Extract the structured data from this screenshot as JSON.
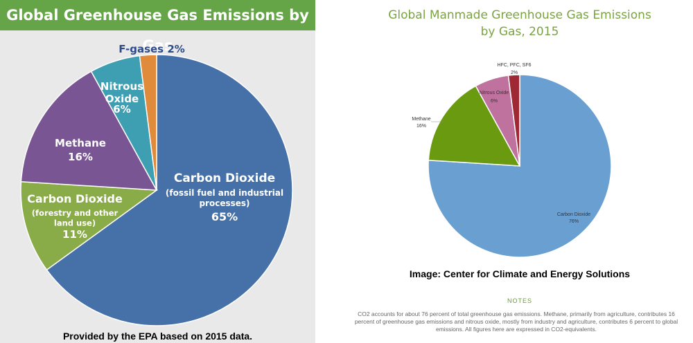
{
  "chart_data": [
    {
      "type": "pie",
      "title": "Global Greenhouse Gas Emissions by Gas",
      "slices": [
        {
          "name_lines": [
            "Carbon Dioxide",
            "(fossil fuel and industrial",
            "processes)"
          ],
          "value": 65,
          "value_label": "65%",
          "color": "#4671a8"
        },
        {
          "name_lines": [
            "Carbon Dioxide",
            "(forestry and other",
            "land use)"
          ],
          "value": 11,
          "value_label": "11%",
          "color": "#89ab48"
        },
        {
          "name_lines": [
            "Methane"
          ],
          "value": 16,
          "value_label": "16%",
          "color": "#795594"
        },
        {
          "name_lines": [
            "Nitrous",
            "Oxide"
          ],
          "value": 6,
          "value_label": "6%",
          "color": "#3e9fb3"
        },
        {
          "name_lines": [],
          "value": 2,
          "value_label": "",
          "color": "#e08a3c"
        }
      ],
      "outside_label": "F-gases 2%",
      "source": "Provided by the EPA based on 2015 data."
    },
    {
      "type": "pie",
      "title_lines": [
        "Global Manmade Greenhouse Gas Emissions",
        "by Gas, 2015"
      ],
      "slices": [
        {
          "name": "Carbon Dioxide",
          "value": 76,
          "value_label": "76%",
          "color": "#6a9fd2"
        },
        {
          "name": "Methane",
          "value": 16,
          "value_label": "16%",
          "color": "#6a9a10"
        },
        {
          "name": "Nitrous Oxide",
          "value": 6,
          "value_label": "6%",
          "color": "#c0729f"
        },
        {
          "name": "HFC, PFC, SF6",
          "value": 2,
          "value_label": "2%",
          "color": "#9e2833"
        }
      ]
    }
  ],
  "credit": "Image: Center for Climate and Energy Solutions",
  "notes_label": "NOTES",
  "notes": "CO2 accounts for about 76 percent of total greenhouse gas emissions. Methane, primarily from agriculture, contributes 16 percent of greenhouse gas emissions and nitrous oxide, mostly from industry and agriculture, contributes 6 percent to global emissions. All figures here are expressed in CO2-equivalents."
}
